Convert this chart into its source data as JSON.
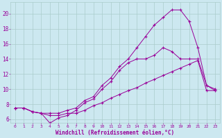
{
  "xlabel": "Windchill (Refroidissement éolien,°C)",
  "bg_color": "#cce8f0",
  "line_color": "#990099",
  "grid_color": "#aacccc",
  "xlim": [
    -0.5,
    23.5
  ],
  "ylim": [
    5.5,
    21.5
  ],
  "xticks": [
    0,
    1,
    2,
    3,
    4,
    5,
    6,
    7,
    8,
    9,
    10,
    11,
    12,
    13,
    14,
    15,
    16,
    17,
    18,
    19,
    20,
    21,
    22,
    23
  ],
  "yticks": [
    6,
    8,
    10,
    12,
    14,
    16,
    18,
    20
  ],
  "line1_x": [
    0,
    1,
    2,
    3,
    4,
    5,
    6,
    7,
    8,
    9,
    10,
    11,
    12,
    13,
    14,
    15,
    16,
    17,
    18,
    19,
    20,
    21,
    22,
    23
  ],
  "line1_y": [
    7.5,
    7.5,
    7.0,
    6.8,
    6.8,
    6.8,
    7.2,
    7.5,
    8.5,
    9.0,
    10.5,
    11.5,
    13.0,
    14.0,
    15.5,
    17.0,
    18.5,
    19.5,
    20.5,
    20.5,
    19.0,
    15.5,
    10.5,
    10.0
  ],
  "line2_x": [
    0,
    1,
    2,
    3,
    4,
    5,
    6,
    7,
    8,
    9,
    10,
    11,
    12,
    13,
    14,
    15,
    16,
    17,
    18,
    19,
    20,
    21,
    22,
    23
  ],
  "line2_y": [
    7.5,
    7.5,
    7.0,
    6.8,
    5.5,
    6.2,
    6.5,
    7.2,
    8.2,
    8.7,
    10.0,
    11.0,
    12.5,
    13.5,
    14.0,
    14.0,
    14.5,
    15.5,
    15.0,
    14.0,
    14.0,
    14.0,
    10.5,
    9.8
  ],
  "line3_x": [
    0,
    1,
    2,
    3,
    4,
    5,
    6,
    7,
    8,
    9,
    10,
    11,
    12,
    13,
    14,
    15,
    16,
    17,
    18,
    19,
    20,
    21,
    22,
    23
  ],
  "line3_y": [
    7.5,
    7.5,
    7.0,
    6.8,
    6.5,
    6.5,
    6.8,
    6.8,
    7.2,
    7.8,
    8.2,
    8.8,
    9.3,
    9.8,
    10.2,
    10.8,
    11.3,
    11.8,
    12.3,
    12.8,
    13.3,
    13.8,
    9.8,
    9.8
  ]
}
